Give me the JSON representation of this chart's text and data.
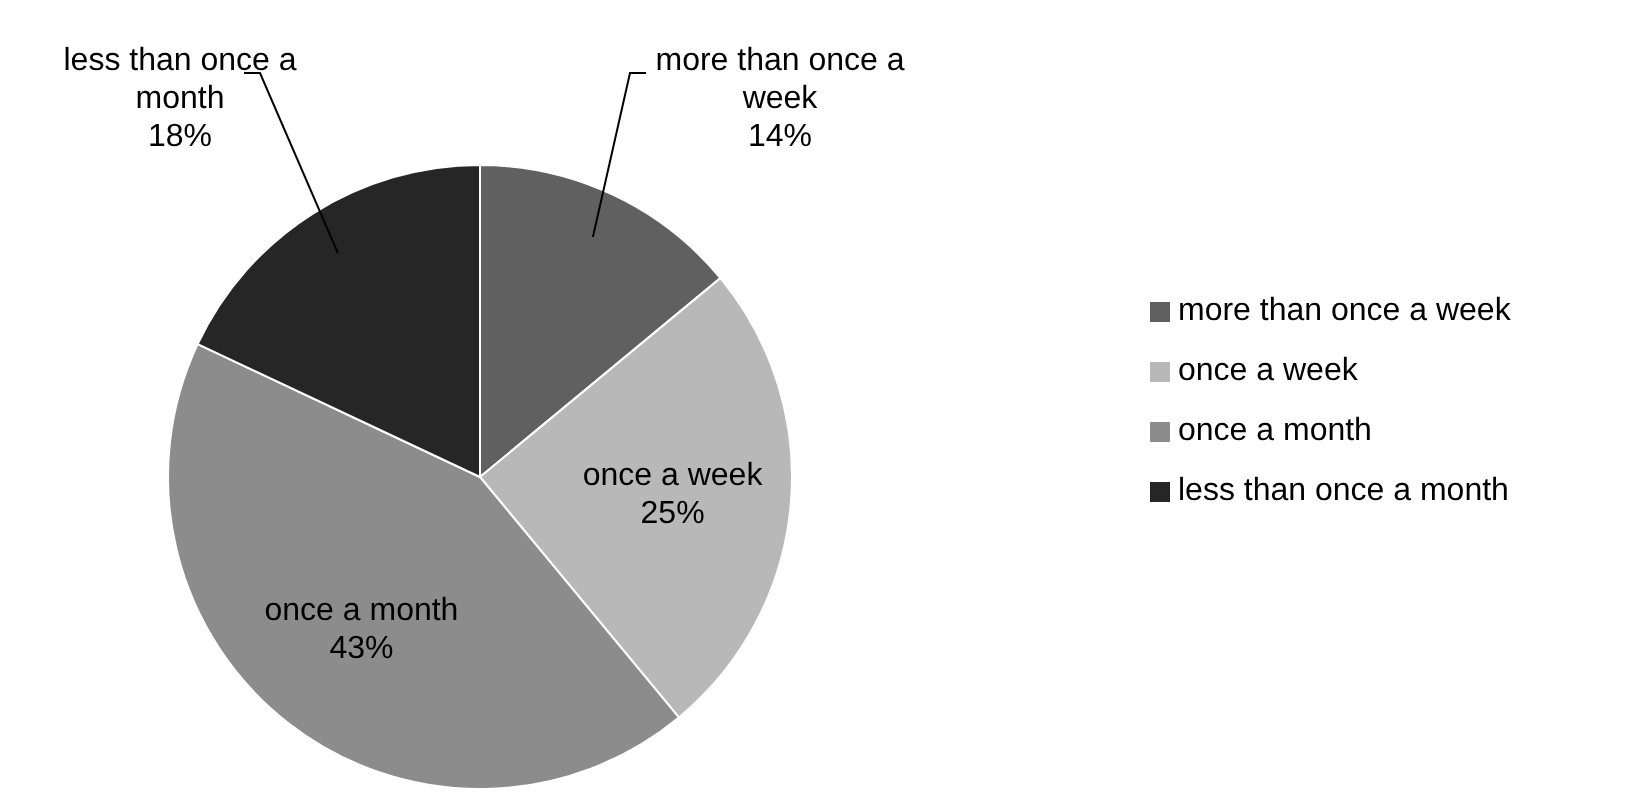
{
  "chart_data": {
    "type": "pie",
    "categories": [
      "more than once a week",
      "once a week",
      "once a month",
      "less than once a month"
    ],
    "values": [
      14,
      25,
      43,
      18
    ],
    "colors": [
      "#606060",
      "#b8b8b8",
      "#8c8c8c",
      "#262626"
    ],
    "value_labels": [
      "14%",
      "25%",
      "43%",
      "18%"
    ],
    "legend": "right"
  }
}
